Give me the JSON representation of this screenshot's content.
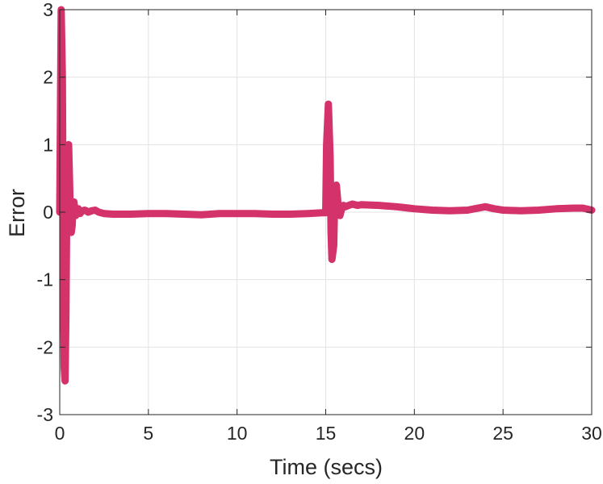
{
  "chart_data": {
    "type": "line",
    "title": "",
    "xlabel": "Time (secs)",
    "ylabel": "Error",
    "xlim": [
      0,
      30
    ],
    "ylim": [
      -3,
      3
    ],
    "xticks": [
      0,
      5,
      10,
      15,
      20,
      25,
      30
    ],
    "yticks": [
      -3,
      -2,
      -1,
      0,
      1,
      2,
      3
    ],
    "xtick_labels": [
      "0",
      "5",
      "10",
      "15",
      "20",
      "25",
      "30"
    ],
    "ytick_labels": [
      "-3",
      "-2",
      "-1",
      "0",
      "1",
      "2",
      "3"
    ],
    "grid": true,
    "legend": "none",
    "series": [
      {
        "color": "#d3336a",
        "x": [
          0,
          0.08,
          0.15,
          0.2,
          0.25,
          0.3,
          0.35,
          0.4,
          0.45,
          0.5,
          0.55,
          0.6,
          0.65,
          0.7,
          0.75,
          0.8,
          0.85,
          0.9,
          0.95,
          1.0,
          1.05,
          1.1,
          1.15,
          1.2,
          1.3,
          1.4,
          1.5,
          1.6,
          1.7,
          1.8,
          2.0,
          2.2,
          2.5,
          3,
          4,
          5,
          6,
          7,
          8,
          8.5,
          9,
          10,
          11,
          12,
          13,
          14,
          14.8,
          15.0,
          15.05,
          15.15,
          15.25,
          15.3,
          15.35,
          15.45,
          15.5,
          15.6,
          15.7,
          15.8,
          15.9,
          16.0,
          16.1,
          16.3,
          16.5,
          16.8,
          17,
          18,
          19,
          20,
          21,
          22,
          23,
          24,
          24.5,
          25,
          26,
          27,
          28,
          29,
          29.5,
          30
        ],
        "y": [
          0,
          3.0,
          2.0,
          -1.0,
          -2.3,
          -2.5,
          -1.5,
          0.2,
          0.9,
          1.0,
          0.5,
          -0.1,
          -0.3,
          -0.2,
          0.1,
          0.15,
          0.05,
          -0.05,
          0.0,
          0.02,
          0.05,
          0.03,
          -0.02,
          0.0,
          0.02,
          0.03,
          0.02,
          0.0,
          0.01,
          0.02,
          0.03,
          0.0,
          -0.02,
          -0.03,
          -0.03,
          -0.02,
          -0.02,
          -0.03,
          -0.04,
          -0.03,
          -0.02,
          -0.02,
          -0.02,
          -0.03,
          -0.03,
          -0.02,
          -0.01,
          -0.01,
          1.0,
          1.6,
          0.8,
          -0.3,
          -0.7,
          -0.5,
          0.1,
          0.4,
          0.1,
          -0.05,
          0.05,
          0.1,
          0.08,
          0.1,
          0.12,
          0.1,
          0.11,
          0.1,
          0.08,
          0.05,
          0.03,
          0.02,
          0.03,
          0.08,
          0.05,
          0.03,
          0.02,
          0.03,
          0.05,
          0.06,
          0.06,
          0.03
        ]
      }
    ]
  }
}
